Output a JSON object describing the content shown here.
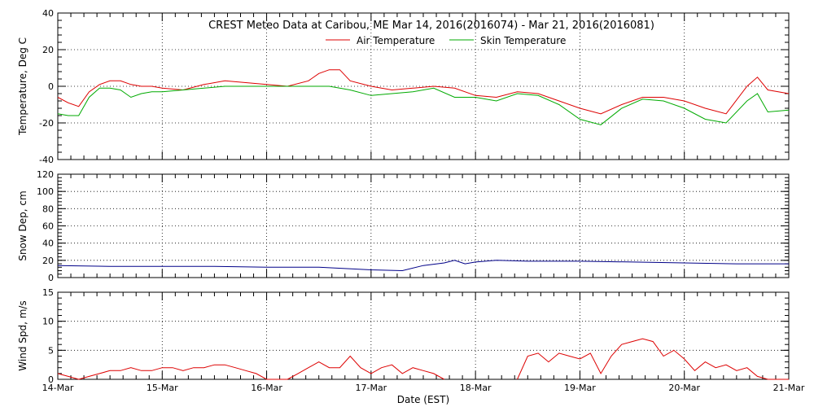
{
  "chart_data": [
    {
      "type": "line",
      "title": "CREST Meteo Data at Caribou, ME   Mar 14, 2016(2016074) - Mar 21, 2016(2016081)",
      "ylabel": "Temperature, Deg C",
      "xlabel": "",
      "ylim": [
        -40,
        40
      ],
      "yticks": [
        -40,
        -20,
        0,
        20,
        40
      ],
      "xlim": [
        0,
        7
      ],
      "grid": true,
      "legend_position": "top-center",
      "series": [
        {
          "name": "Air Temperature",
          "color": "#dd0000",
          "x": [
            0,
            0.1,
            0.2,
            0.3,
            0.4,
            0.5,
            0.6,
            0.7,
            0.8,
            0.9,
            1.0,
            1.2,
            1.4,
            1.6,
            1.8,
            2.0,
            2.2,
            2.4,
            2.5,
            2.6,
            2.7,
            2.8,
            3.0,
            3.2,
            3.4,
            3.6,
            3.8,
            4.0,
            4.2,
            4.4,
            4.6,
            4.8,
            5.0,
            5.2,
            5.4,
            5.6,
            5.8,
            6.0,
            6.2,
            6.4,
            6.6,
            6.7,
            6.8,
            7.0
          ],
          "values": [
            -6,
            -9,
            -11,
            -3,
            1,
            3,
            3,
            1,
            0,
            0,
            -1,
            -2,
            1,
            3,
            2,
            1,
            0,
            3,
            7,
            9,
            9,
            3,
            0,
            -2,
            -1,
            0,
            -1,
            -5,
            -6,
            -3,
            -4,
            -8,
            -12,
            -15,
            -10,
            -6,
            -6,
            -8,
            -12,
            -15,
            0,
            5,
            -2,
            -4
          ]
        },
        {
          "name": "Skin Temperature",
          "color": "#00aa00",
          "x": [
            0,
            0.1,
            0.2,
            0.3,
            0.4,
            0.5,
            0.6,
            0.7,
            0.8,
            0.9,
            1.0,
            1.2,
            1.4,
            1.6,
            1.8,
            2.0,
            2.2,
            2.4,
            2.6,
            2.8,
            3.0,
            3.2,
            3.4,
            3.6,
            3.8,
            4.0,
            4.2,
            4.4,
            4.6,
            4.8,
            5.0,
            5.2,
            5.4,
            5.6,
            5.8,
            6.0,
            6.2,
            6.4,
            6.6,
            6.7,
            6.8,
            7.0
          ],
          "values": [
            -15,
            -16,
            -16,
            -6,
            -1,
            -1,
            -2,
            -6,
            -4,
            -3,
            -3,
            -2,
            -1,
            0,
            0,
            0,
            0,
            0,
            0,
            -2,
            -5,
            -4,
            -3,
            -1,
            -6,
            -6,
            -8,
            -4,
            -5,
            -10,
            -18,
            -21,
            -12,
            -7,
            -8,
            -12,
            -18,
            -20,
            -8,
            -4,
            -14,
            -13
          ]
        }
      ]
    },
    {
      "type": "line",
      "title": "",
      "ylabel": "Snow Dep, cm",
      "ylim": [
        0,
        120
      ],
      "yticks": [
        0,
        20,
        40,
        60,
        80,
        100,
        120
      ],
      "xlim": [
        0,
        7
      ],
      "grid": true,
      "series": [
        {
          "color": "#000088",
          "x": [
            0,
            0.5,
            1.0,
            1.5,
            2.0,
            2.5,
            3.0,
            3.3,
            3.5,
            3.7,
            3.8,
            3.9,
            4.0,
            4.2,
            4.5,
            5.0,
            5.5,
            6.0,
            6.5,
            7.0
          ],
          "values": [
            14,
            13,
            13,
            13,
            12,
            12,
            9,
            8,
            14,
            17,
            20,
            16,
            18,
            20,
            19,
            19,
            18,
            17,
            16,
            16
          ]
        }
      ]
    },
    {
      "type": "line",
      "title": "",
      "ylabel": "Wind Spd, m/s",
      "xlabel": "Date (EST)",
      "ylim": [
        0,
        15
      ],
      "yticks": [
        0,
        5,
        10,
        15
      ],
      "xlim": [
        0,
        7
      ],
      "xtick_labels": [
        "14-Mar",
        "15-Mar",
        "16-Mar",
        "17-Mar",
        "18-Mar",
        "19-Mar",
        "20-Mar",
        "21-Mar"
      ],
      "grid": true,
      "series": [
        {
          "color": "#dd0000",
          "segments": [
            {
              "x": [
                0,
                0.1,
                0.2,
                0.3,
                0.4,
                0.5,
                0.6,
                0.7,
                0.8,
                0.9,
                1.0,
                1.1,
                1.2,
                1.3,
                1.4,
                1.5,
                1.6,
                1.7,
                1.8,
                1.9,
                2.0,
                2.1,
                2.2
              ],
              "values": [
                1,
                0.5,
                0,
                0.5,
                1,
                1.5,
                1.5,
                2,
                1.5,
                1.5,
                2,
                2,
                1.5,
                2,
                2,
                2.5,
                2.5,
                2,
                1.5,
                1,
                0,
                0,
                0
              ]
            },
            {
              "x": [
                2.2,
                2.3,
                2.4,
                2.5,
                2.6,
                2.7,
                2.8,
                2.9,
                3.0,
                3.1,
                3.2,
                3.3,
                3.4,
                3.5,
                3.6,
                3.7
              ],
              "values": [
                0,
                1,
                2,
                3,
                2,
                2,
                4,
                2,
                1,
                2,
                2.5,
                1,
                2,
                1.5,
                1,
                0
              ]
            },
            {
              "x": [
                4.4,
                4.5,
                4.6,
                4.7,
                4.8,
                4.9,
                5.0,
                5.1,
                5.2,
                5.3,
                5.4,
                5.5,
                5.6,
                5.7,
                5.8,
                5.9,
                6.0,
                6.1,
                6.2,
                6.3,
                6.4,
                6.5,
                6.6,
                6.7,
                6.8,
                6.9,
                7.0
              ],
              "values": [
                0,
                4,
                4.5,
                3,
                4.5,
                4,
                3.5,
                4.5,
                1,
                4,
                6,
                6.5,
                7,
                6.5,
                4,
                5,
                3.5,
                1.5,
                3,
                2,
                2.5,
                1.5,
                2,
                0.5,
                0,
                0,
                0
              ]
            }
          ]
        }
      ]
    }
  ]
}
